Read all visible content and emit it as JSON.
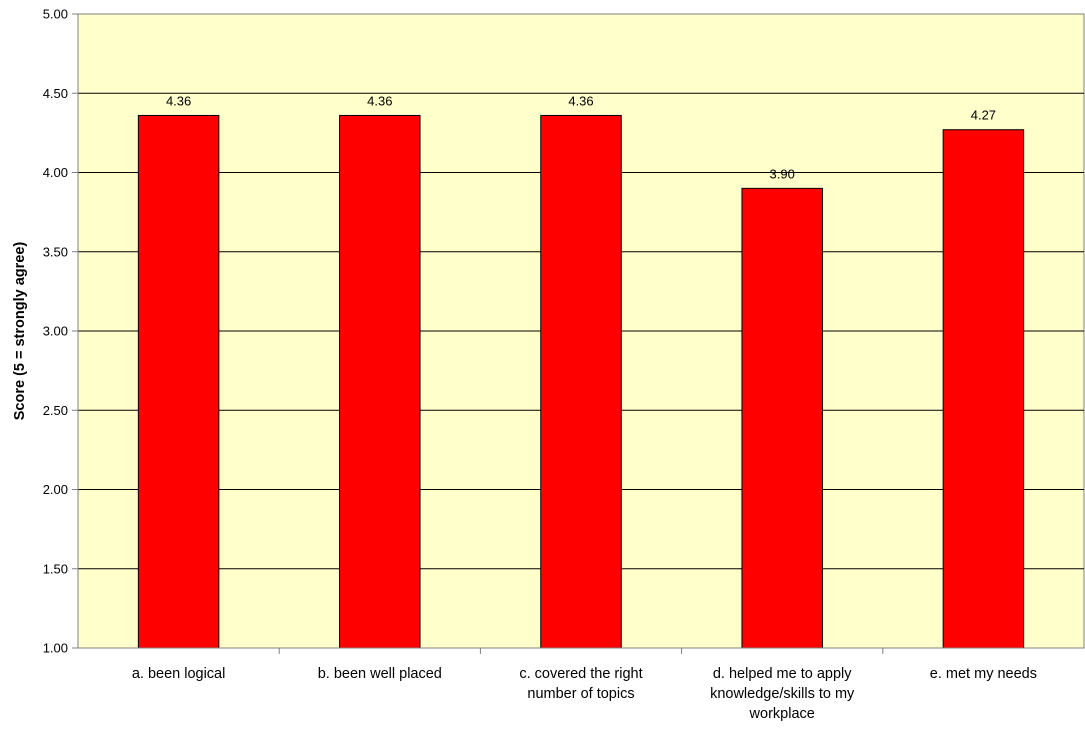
{
  "chart_data": {
    "type": "bar",
    "title": "",
    "xlabel": "",
    "ylabel": "Score (5 = strongly agree)",
    "ylim": [
      1.0,
      5.0
    ],
    "ytick_step": 0.5,
    "ytick_labels": [
      "1.00",
      "1.50",
      "2.00",
      "2.50",
      "3.00",
      "3.50",
      "4.00",
      "4.50",
      "5.00"
    ],
    "grid": true,
    "legend": "none",
    "categories": [
      [
        "a. been logical"
      ],
      [
        "b. been well placed"
      ],
      [
        "c. covered the right",
        "number of topics"
      ],
      [
        "d. helped me to apply",
        "knowledge/skills to my",
        "workplace"
      ],
      [
        "e. met my needs"
      ]
    ],
    "values": [
      4.36,
      4.36,
      4.36,
      3.9,
      4.27
    ],
    "data_labels": [
      "4.36",
      "4.36",
      "4.36",
      "3.90",
      "4.27"
    ],
    "colors": {
      "bar_fill": "#ff0000",
      "bar_stroke": "#000000",
      "plot_background": "#ffffcc",
      "gridline": "#000000",
      "axis": "#808080"
    }
  }
}
